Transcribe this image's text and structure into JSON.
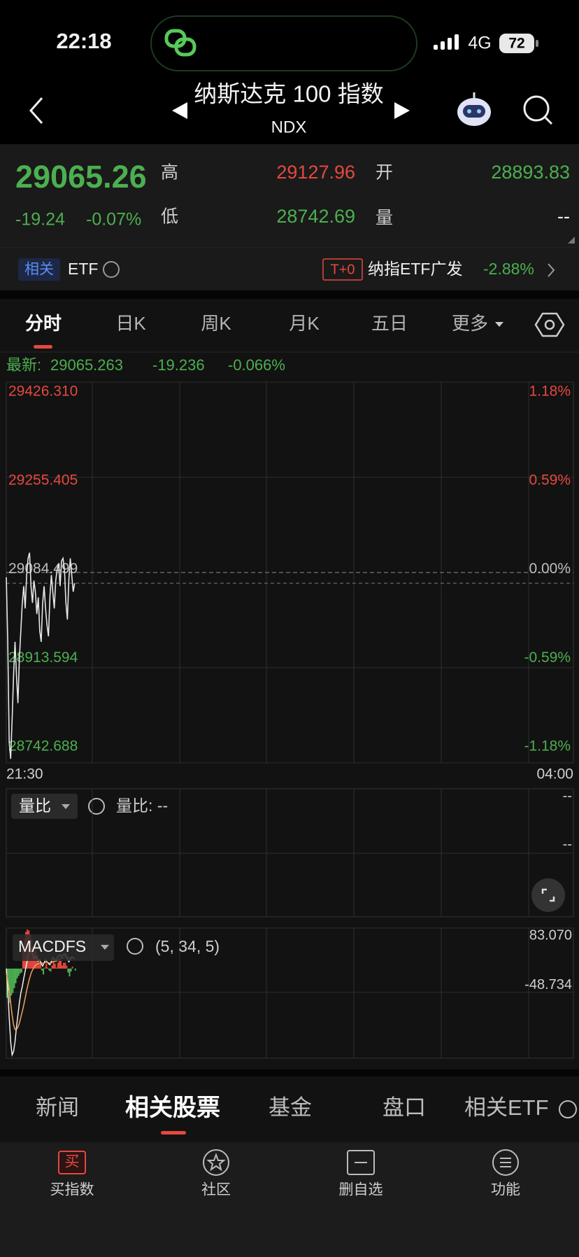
{
  "status_bar": {
    "time": "22:18",
    "network": "4G",
    "battery": "72"
  },
  "header": {
    "title": "纳斯达克 100 指数",
    "subtitle": "NDX"
  },
  "quote": {
    "price": 29065.26,
    "change": -19.24,
    "change_pct": "-0.07%",
    "high_label": "高",
    "high": 29127.96,
    "open_label": "开",
    "open": 28893.83,
    "low_label": "低",
    "low": 28742.69,
    "volume_label": "量",
    "volume": "--"
  },
  "related": {
    "tag": "相关",
    "label": "ETF",
    "badge": "T+0",
    "fund": "纳指ETF广发",
    "fund_change": "-2.88%"
  },
  "tabs": [
    "分时",
    "日K",
    "周K",
    "月K",
    "五日",
    "更多"
  ],
  "chart_data": [
    {
      "type": "line",
      "latest": {
        "label": "最新:",
        "price": 29065.263,
        "change": -19.236,
        "change_pct": {
          "value": -0.066,
          "label": "-0.066%"
        }
      },
      "x": [
        0,
        1,
        2,
        3,
        4,
        5,
        6,
        7,
        8,
        9,
        10,
        11,
        12,
        13,
        14,
        15,
        16,
        17,
        18,
        19,
        20,
        21,
        22,
        23,
        24,
        25,
        26,
        27,
        28,
        29,
        30,
        31,
        32,
        33,
        34,
        35,
        36,
        37,
        38,
        39,
        40,
        41,
        42,
        43,
        44,
        45,
        46,
        47
      ],
      "series": [
        {
          "color": "#e6e6e6",
          "values": [
            29076,
            28960,
            28780,
            28750,
            28820,
            28900,
            28960,
            28900,
            28850,
            28930,
            28980,
            29030,
            29060,
            29020,
            29080,
            29110,
            29120,
            29060,
            29030,
            29070,
            29050,
            29010,
            29040,
            28980,
            28960,
            29030,
            29060,
            29020,
            28990,
            28970,
            29040,
            29080,
            29050,
            29020,
            29070,
            29090,
            29100,
            29060,
            29105,
            29110,
            29090,
            29030,
            29000,
            29070,
            29110,
            29080,
            29050,
            29065.26
          ]
        }
      ],
      "xlim": [
        0,
        390
      ],
      "xticks": [
        {
          "value": 0,
          "label": "21:30"
        },
        {
          "value": 390,
          "label": "04:00"
        }
      ],
      "ylim": [
        28742.688,
        29426.31
      ],
      "yticks": [
        {
          "value": 29426.31,
          "label": "29426.310"
        },
        29255.405,
        29084.499,
        28913.594,
        28742.688
      ],
      "y2lim": [
        -1.18,
        1.18
      ],
      "y2ticks": [
        {
          "value": 1.18,
          "label": "1.18%"
        },
        {
          "value": 0.59,
          "label": "0.59%"
        },
        {
          "value": 0,
          "label": "0.00%"
        },
        {
          "value": -0.59,
          "label": "-0.59%"
        },
        {
          "value": -1.18,
          "label": "-1.18%"
        }
      ],
      "up_color": "#e5483f",
      "down_color": "#4caf50",
      "flat_color": "#bdbdbd",
      "grid": true
    },
    {
      "type": "macd",
      "title": "MACDFS",
      "params": "(5, 34, 5)",
      "x": [
        0,
        1,
        2,
        3,
        4,
        5,
        6,
        7,
        8,
        9,
        10,
        11,
        12,
        13,
        14,
        15,
        16,
        17,
        18,
        19,
        20,
        21,
        22,
        23,
        24,
        25,
        26,
        27,
        28,
        29,
        30,
        31,
        32,
        33,
        34,
        35,
        36,
        37,
        38,
        39,
        40,
        41,
        42,
        43,
        44,
        45,
        46,
        47
      ],
      "lines": [
        {
          "color": "#f0f0f0",
          "values": [
            0,
            -40,
            -100,
            -150,
            -177,
            -170,
            -150,
            -120,
            -95,
            -70,
            -50,
            -37,
            -20,
            -5,
            10,
            25,
            35,
            40,
            30,
            20,
            25,
            22,
            15,
            18,
            10,
            5,
            12,
            18,
            14,
            10,
            8,
            15,
            22,
            20,
            16,
            22,
            26,
            28,
            24,
            28,
            30,
            28,
            20,
            14,
            18,
            24,
            22,
            20
          ]
        },
        {
          "color": "#f0a35e",
          "values": [
            -10,
            -25,
            -45,
            -70,
            -95,
            -115,
            -125,
            -125,
            -120,
            -112,
            -100,
            -88,
            -75,
            -60,
            -45,
            -32,
            -20,
            -10,
            -3,
            2,
            6,
            9,
            10,
            12,
            12,
            11,
            11,
            13,
            13,
            12,
            11,
            12,
            14,
            15,
            15,
            16,
            18,
            20,
            21,
            22,
            24,
            25,
            24,
            22,
            21,
            22,
            22,
            22
          ]
        }
      ],
      "histogram": {
        "up_color": "#e5483f",
        "down_color": "#4caf50",
        "values": [
          -60,
          -45,
          -70,
          -55,
          -50,
          -40,
          -30,
          -20,
          -15,
          -10,
          -8,
          40,
          60,
          75,
          80,
          78,
          70,
          60,
          45,
          36,
          38,
          26,
          10,
          12,
          -4,
          -12,
          2,
          10,
          2,
          -4,
          -6,
          6,
          16,
          10,
          2,
          12,
          16,
          16,
          6,
          12,
          12,
          6,
          -8,
          -16,
          -6,
          4,
          0,
          -4
        ]
      },
      "xlim": [
        0,
        390
      ],
      "ylim": [
        -183.8,
        83.07
      ],
      "yticks": [
        {
          "value": 83.07,
          "label": "83.070"
        },
        -48.734
      ]
    }
  ],
  "ratio_panel": {
    "title": "量比",
    "annotation": "量比: --",
    "right_labels": [
      "--",
      "--"
    ]
  },
  "bottom_tabs": [
    "新闻",
    "相关股票",
    "基金",
    "盘口",
    "相关ETF"
  ],
  "toolbar": {
    "buy_icon": "买",
    "items": [
      "买指数",
      "社区",
      "删自选",
      "功能"
    ]
  }
}
